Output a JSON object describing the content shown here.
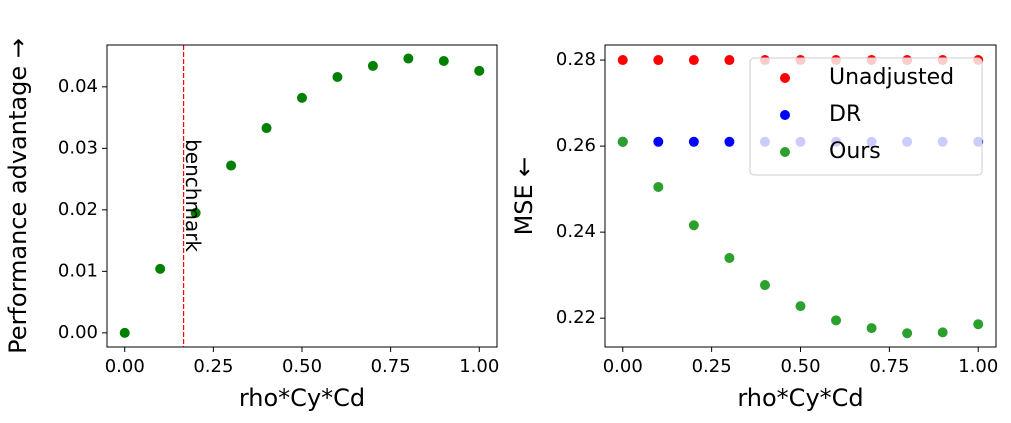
{
  "chart_data": [
    {
      "type": "scatter",
      "xlabel": "rho*Cy*Cd",
      "ylabel": "Performance advantage →",
      "x": [
        0.0,
        0.1,
        0.2,
        0.3,
        0.4,
        0.5,
        0.6,
        0.7,
        0.8,
        0.9,
        1.0
      ],
      "series": [
        {
          "name": null,
          "color": "#008000",
          "values": [
            0.0,
            0.0104,
            0.0195,
            0.0272,
            0.0333,
            0.0382,
            0.0416,
            0.0434,
            0.0446,
            0.0442,
            0.0426
          ]
        }
      ],
      "xlim": [
        -0.05,
        1.05
      ],
      "ylim": [
        -0.0023,
        0.0468
      ],
      "xticks": [
        {
          "value": 0,
          "label": "0.00"
        },
        0.25,
        {
          "value": 0.5,
          "label": "0.50"
        },
        0.75,
        {
          "value": 1,
          "label": "1.00"
        }
      ],
      "yticks": [
        {
          "value": 0,
          "label": "0.00"
        },
        0.01,
        0.02,
        0.03,
        0.04
      ],
      "vline": {
        "x": 0.166,
        "color": "#ff0000",
        "label": "benchmark"
      }
    },
    {
      "type": "scatter",
      "xlabel": "rho*Cy*Cd",
      "ylabel": "MSE ←",
      "x": [
        0.0,
        0.1,
        0.2,
        0.3,
        0.4,
        0.5,
        0.6,
        0.7,
        0.8,
        0.9,
        1.0
      ],
      "series": [
        {
          "name": "Unadjusted",
          "color": "#ff0000",
          "values": [
            0.28,
            0.28,
            0.28,
            0.28,
            0.28,
            0.28,
            0.28,
            0.28,
            0.28,
            0.28,
            0.28
          ]
        },
        {
          "name": "DR",
          "color": "#0000ff",
          "values": [
            0.261,
            0.261,
            0.261,
            0.261,
            0.261,
            0.261,
            0.261,
            0.261,
            0.261,
            0.261,
            0.261
          ]
        },
        {
          "name": "Ours",
          "color": "#2ca02c",
          "values": [
            0.261,
            0.2505,
            0.2416,
            0.234,
            0.2277,
            0.2228,
            0.2195,
            0.2177,
            0.2165,
            0.2167,
            0.2186
          ]
        }
      ],
      "xlim": [
        -0.05,
        1.05
      ],
      "ylim": [
        0.2133,
        0.2835
      ],
      "xticks": [
        {
          "value": 0,
          "label": "0.00"
        },
        0.25,
        {
          "value": 0.5,
          "label": "0.50"
        },
        0.75,
        {
          "value": 1,
          "label": "1.00"
        }
      ],
      "yticks": [
        0.22,
        0.24,
        0.26,
        0.28
      ],
      "legend": "upper right"
    }
  ]
}
